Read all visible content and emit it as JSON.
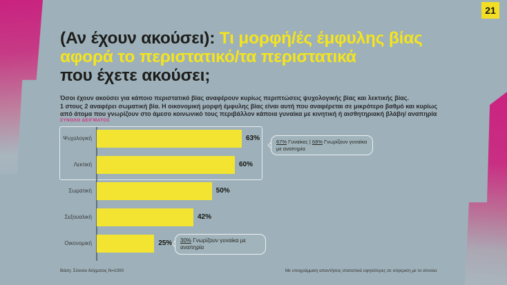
{
  "page_number": "21",
  "title": {
    "prefix": "(Αν έχουν ακούσει): ",
    "highlight_line1": "Τι μορφή/ές έμφυλης βίας",
    "highlight_line2": "αφορά το περιστατικό/τα περιστατικά",
    "suffix": "που έχετε ακούσει;"
  },
  "subtitle_lines": [
    "Όσοι έχουν ακούσει για κάποιο περιστατικό βίας αναφέρουν κυρίως περιπτώσεις ψυχολογικής βίας και λεκτικής βίας.",
    "1 στους 2 αναφέρει σωματική βία. Η οικονομική μορφή έμφυλης βίας είναι αυτή που αναφέρεται σε μικρότερο βαθμό και κυρίως",
    "από άτομα που γνωρίζουν στο άμεσο κοινωνικό τους περιβάλλον κάποια γυναίκα με κινητική ή αισθητηριακή βλάβη/ αναπηρία"
  ],
  "sample_label": "ΣΥΝΟΛΟ ΔΕΙΓΜΑΤΟΣ",
  "chart_data": {
    "type": "bar",
    "orientation": "horizontal",
    "categories": [
      "Ψυχολογική",
      "Λεκτική",
      "Σωματική",
      "Σεξουαλική",
      "Οικονομική"
    ],
    "values": [
      63,
      60,
      50,
      42,
      25
    ],
    "value_labels": [
      "63%",
      "60%",
      "50%",
      "42%",
      "25%"
    ],
    "xlim": [
      0,
      100
    ],
    "highlighted_categories": [
      "Ψυχολογική",
      "Λεκτική"
    ],
    "bar_color": "#F2E430",
    "grid": false,
    "legend": false
  },
  "callouts": {
    "top": {
      "parts": [
        {
          "t": "67%",
          "u": true
        },
        {
          "t": " Γυναίκες | ",
          "u": false
        },
        {
          "t": "68%",
          "u": true
        },
        {
          "t": " Γνωρίζουν γυναίκα με αναπηρία",
          "u": false
        }
      ]
    },
    "bottom": {
      "parts": [
        {
          "t": "30%",
          "u": true
        },
        {
          "t": " Γνωρίζουν γυναίκα με αναπηρία",
          "u": false
        }
      ]
    }
  },
  "footer": {
    "left": "Βάση: Σύνολο δείγματος N=1000",
    "right": "Με υπογράμμιση απαντήσεις στατιστικά υψηλότερες σε σύγκριση με το σύνολο"
  },
  "colors": {
    "background": "#9EB1BA",
    "accent_magenta": "#CA2280",
    "bar_yellow": "#F2E430",
    "title_yellow": "#F5E41C",
    "text_dark": "#1D1D1B",
    "sample_label_pink": "#D6307F"
  }
}
